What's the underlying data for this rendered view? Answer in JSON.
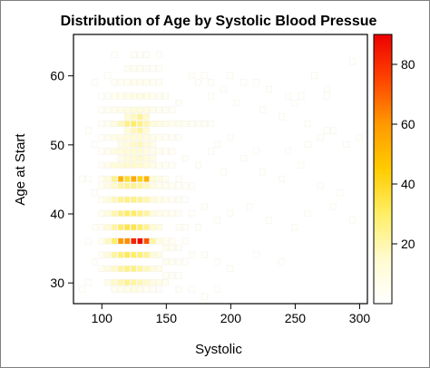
{
  "chart_data": {
    "type": "heatmap",
    "title": "Distribution of Age by Systolic Blood Pressue",
    "xlabel": "Systolic",
    "ylabel": "Age at Start",
    "xlim": [
      78,
      306
    ],
    "ylim": [
      27,
      66
    ],
    "x_ticks": [
      100,
      150,
      200,
      250,
      300
    ],
    "y_ticks": [
      30,
      40,
      50,
      60
    ],
    "colorbar": {
      "min": 0,
      "max": 90,
      "ticks": [
        20,
        40,
        60,
        80
      ],
      "colors": [
        "#ffffff",
        "#fffbd0",
        "#ffee66",
        "#ffcc00",
        "#ff9900",
        "#ff4400",
        "#ee0000"
      ]
    },
    "bin_width_x": 5,
    "bin_height_y": 1,
    "cells": [
      [
        115,
        36,
        60
      ],
      [
        120,
        36,
        62
      ],
      [
        125,
        36,
        82
      ],
      [
        130,
        36,
        88
      ],
      [
        135,
        36,
        72
      ],
      [
        110,
        36,
        30
      ],
      [
        140,
        36,
        22
      ],
      [
        145,
        36,
        10
      ],
      [
        150,
        36,
        6
      ],
      [
        105,
        36,
        18
      ],
      [
        100,
        36,
        6
      ],
      [
        155,
        36,
        4
      ],
      [
        165,
        36,
        2
      ],
      [
        115,
        45,
        52
      ],
      [
        120,
        45,
        38
      ],
      [
        125,
        45,
        55
      ],
      [
        130,
        45,
        42
      ],
      [
        135,
        45,
        52
      ],
      [
        110,
        45,
        24
      ],
      [
        140,
        45,
        14
      ],
      [
        145,
        45,
        8
      ],
      [
        150,
        45,
        4
      ],
      [
        105,
        45,
        12
      ],
      [
        100,
        45,
        5
      ],
      [
        160,
        45,
        2
      ],
      [
        120,
        53,
        26
      ],
      [
        125,
        53,
        30
      ],
      [
        130,
        53,
        26
      ],
      [
        135,
        53,
        20
      ],
      [
        115,
        53,
        18
      ],
      [
        140,
        53,
        12
      ],
      [
        145,
        53,
        10
      ],
      [
        150,
        53,
        8
      ],
      [
        155,
        53,
        6
      ],
      [
        160,
        53,
        6
      ],
      [
        165,
        53,
        4
      ],
      [
        170,
        53,
        4
      ],
      [
        175,
        53,
        3
      ],
      [
        180,
        53,
        3
      ],
      [
        185,
        53,
        2
      ],
      [
        110,
        53,
        10
      ],
      [
        105,
        53,
        5
      ],
      [
        130,
        54,
        24
      ],
      [
        125,
        54,
        18
      ],
      [
        135,
        54,
        16
      ],
      [
        120,
        54,
        14
      ],
      [
        130,
        52,
        22
      ],
      [
        125,
        52,
        18
      ],
      [
        135,
        52,
        14
      ],
      [
        120,
        52,
        12
      ],
      [
        130,
        50,
        18
      ],
      [
        125,
        50,
        16
      ],
      [
        135,
        50,
        12
      ],
      [
        120,
        50,
        12
      ],
      [
        140,
        50,
        8
      ],
      [
        115,
        50,
        8
      ],
      [
        130,
        48,
        16
      ],
      [
        125,
        48,
        14
      ],
      [
        135,
        48,
        12
      ],
      [
        120,
        48,
        12
      ],
      [
        140,
        48,
        8
      ],
      [
        115,
        48,
        8
      ],
      [
        120,
        30,
        24
      ],
      [
        125,
        30,
        22
      ],
      [
        130,
        30,
        20
      ],
      [
        115,
        30,
        20
      ],
      [
        135,
        30,
        16
      ],
      [
        110,
        30,
        16
      ],
      [
        140,
        30,
        10
      ],
      [
        145,
        30,
        8
      ],
      [
        150,
        30,
        5
      ],
      [
        105,
        30,
        8
      ],
      [
        125,
        29,
        10
      ],
      [
        120,
        29,
        8
      ],
      [
        130,
        29,
        8
      ],
      [
        115,
        29,
        6
      ],
      [
        135,
        29,
        5
      ],
      [
        110,
        29,
        5
      ],
      [
        140,
        29,
        3
      ],
      [
        145,
        29,
        2
      ],
      [
        125,
        57,
        10
      ],
      [
        130,
        57,
        10
      ],
      [
        135,
        57,
        8
      ],
      [
        120,
        57,
        8
      ],
      [
        140,
        57,
        6
      ],
      [
        145,
        57,
        4
      ],
      [
        115,
        57,
        5
      ],
      [
        150,
        57,
        4
      ],
      [
        125,
        59,
        6
      ],
      [
        130,
        59,
        6
      ],
      [
        135,
        59,
        5
      ],
      [
        120,
        59,
        5
      ],
      [
        140,
        59,
        4
      ],
      [
        145,
        59,
        3
      ],
      [
        115,
        59,
        3
      ],
      [
        130,
        61,
        4
      ],
      [
        125,
        61,
        4
      ],
      [
        135,
        61,
        3
      ],
      [
        140,
        61,
        2
      ],
      [
        120,
        61,
        3
      ],
      [
        145,
        61,
        2
      ],
      [
        130,
        63,
        2
      ],
      [
        125,
        63,
        2
      ],
      [
        135,
        63,
        2
      ],
      [
        110,
        63,
        1
      ],
      [
        145,
        63,
        1
      ],
      [
        105,
        60,
        1
      ],
      [
        95,
        59,
        1
      ],
      [
        100,
        57,
        1
      ],
      [
        170,
        60,
        2
      ],
      [
        175,
        59,
        1
      ],
      [
        180,
        60,
        1
      ],
      [
        185,
        59,
        1
      ],
      [
        195,
        58,
        1
      ],
      [
        200,
        60,
        1
      ],
      [
        210,
        59,
        1
      ],
      [
        220,
        59,
        1
      ],
      [
        230,
        58,
        1
      ],
      [
        245,
        57,
        1
      ],
      [
        250,
        56,
        1
      ],
      [
        255,
        57,
        1
      ],
      [
        265,
        60,
        1
      ],
      [
        275,
        58,
        1
      ],
      [
        275,
        57,
        1
      ],
      [
        295,
        62,
        1
      ],
      [
        185,
        57,
        1
      ],
      [
        205,
        56,
        1
      ],
      [
        225,
        55,
        1
      ],
      [
        240,
        54,
        1
      ],
      [
        260,
        53,
        1
      ],
      [
        270,
        51,
        1
      ],
      [
        280,
        52,
        1
      ],
      [
        290,
        50,
        1
      ],
      [
        165,
        48,
        2
      ],
      [
        175,
        47,
        2
      ],
      [
        185,
        49,
        1
      ],
      [
        195,
        46,
        1
      ],
      [
        210,
        48,
        1
      ],
      [
        225,
        46,
        1
      ],
      [
        240,
        45,
        1
      ],
      [
        255,
        47,
        1
      ],
      [
        270,
        44,
        1
      ],
      [
        285,
        43,
        1
      ],
      [
        190,
        50,
        2
      ],
      [
        200,
        51,
        1
      ],
      [
        220,
        49,
        1
      ],
      [
        245,
        49,
        1
      ],
      [
        260,
        50,
        1
      ],
      [
        275,
        52,
        1
      ],
      [
        300,
        51,
        1
      ],
      [
        170,
        40,
        2
      ],
      [
        180,
        41,
        2
      ],
      [
        190,
        39,
        1
      ],
      [
        200,
        40,
        1
      ],
      [
        215,
        41,
        1
      ],
      [
        230,
        39,
        1
      ],
      [
        250,
        38,
        1
      ],
      [
        260,
        40,
        1
      ],
      [
        280,
        41,
        1
      ],
      [
        295,
        39,
        1
      ],
      [
        160,
        38,
        3
      ],
      [
        165,
        38,
        2
      ],
      [
        175,
        38,
        2
      ],
      [
        170,
        34,
        2
      ],
      [
        180,
        34,
        2
      ],
      [
        190,
        33,
        1
      ],
      [
        200,
        32,
        1
      ],
      [
        220,
        34,
        1
      ],
      [
        240,
        33,
        1
      ],
      [
        150,
        40,
        6
      ],
      [
        155,
        40,
        5
      ],
      [
        160,
        40,
        3
      ],
      [
        150,
        42,
        6
      ],
      [
        155,
        42,
        4
      ],
      [
        160,
        42,
        3
      ],
      [
        165,
        42,
        2
      ],
      [
        150,
        44,
        6
      ],
      [
        155,
        44,
        4
      ],
      [
        160,
        44,
        3
      ],
      [
        165,
        44,
        2
      ],
      [
        170,
        44,
        2
      ],
      [
        150,
        33,
        6
      ],
      [
        155,
        33,
        4
      ],
      [
        160,
        33,
        3
      ],
      [
        165,
        33,
        2
      ],
      [
        150,
        31,
        5
      ],
      [
        155,
        31,
        3
      ],
      [
        160,
        31,
        2
      ],
      [
        160,
        29,
        2
      ],
      [
        170,
        29,
        1
      ],
      [
        180,
        28,
        1
      ],
      [
        190,
        29,
        1
      ],
      [
        95,
        43,
        2
      ],
      [
        90,
        45,
        1
      ],
      [
        85,
        45,
        1
      ],
      [
        95,
        38,
        2
      ],
      [
        90,
        36,
        1
      ],
      [
        95,
        33,
        2
      ],
      [
        90,
        30,
        1
      ],
      [
        85,
        29,
        1
      ],
      [
        95,
        50,
        1
      ],
      [
        90,
        52,
        1
      ],
      [
        100,
        32,
        4
      ],
      [
        100,
        34,
        5
      ],
      [
        100,
        38,
        5
      ],
      [
        100,
        40,
        5
      ],
      [
        100,
        42,
        5
      ],
      [
        100,
        44,
        4
      ],
      [
        100,
        47,
        3
      ],
      [
        100,
        49,
        3
      ],
      [
        100,
        51,
        2
      ],
      [
        100,
        53,
        2
      ],
      [
        100,
        55,
        2
      ],
      [
        105,
        32,
        10
      ],
      [
        105,
        34,
        14
      ],
      [
        105,
        38,
        14
      ],
      [
        105,
        40,
        12
      ],
      [
        105,
        42,
        12
      ],
      [
        105,
        44,
        10
      ],
      [
        105,
        47,
        8
      ],
      [
        105,
        49,
        6
      ],
      [
        105,
        51,
        5
      ],
      [
        105,
        55,
        4
      ],
      [
        105,
        57,
        3
      ],
      [
        110,
        32,
        16
      ],
      [
        110,
        34,
        22
      ],
      [
        110,
        38,
        22
      ],
      [
        110,
        40,
        20
      ],
      [
        110,
        42,
        18
      ],
      [
        110,
        44,
        16
      ],
      [
        110,
        47,
        12
      ],
      [
        110,
        49,
        10
      ],
      [
        110,
        51,
        8
      ],
      [
        110,
        55,
        6
      ],
      [
        110,
        57,
        5
      ],
      [
        110,
        59,
        3
      ],
      [
        115,
        32,
        22
      ],
      [
        115,
        34,
        28
      ],
      [
        115,
        38,
        30
      ],
      [
        115,
        40,
        26
      ],
      [
        115,
        42,
        24
      ],
      [
        115,
        44,
        22
      ],
      [
        115,
        47,
        14
      ],
      [
        115,
        49,
        12
      ],
      [
        115,
        51,
        10
      ],
      [
        115,
        55,
        8
      ],
      [
        120,
        32,
        26
      ],
      [
        120,
        34,
        32
      ],
      [
        120,
        38,
        34
      ],
      [
        120,
        40,
        30
      ],
      [
        120,
        42,
        26
      ],
      [
        120,
        44,
        24
      ],
      [
        120,
        47,
        16
      ],
      [
        120,
        49,
        14
      ],
      [
        120,
        51,
        12
      ],
      [
        120,
        55,
        10
      ],
      [
        125,
        32,
        26
      ],
      [
        125,
        34,
        30
      ],
      [
        125,
        38,
        34
      ],
      [
        125,
        40,
        30
      ],
      [
        125,
        42,
        26
      ],
      [
        125,
        44,
        24
      ],
      [
        125,
        47,
        16
      ],
      [
        125,
        49,
        14
      ],
      [
        125,
        51,
        14
      ],
      [
        125,
        55,
        12
      ],
      [
        130,
        32,
        22
      ],
      [
        130,
        34,
        28
      ],
      [
        130,
        38,
        30
      ],
      [
        130,
        40,
        26
      ],
      [
        130,
        42,
        24
      ],
      [
        130,
        44,
        22
      ],
      [
        130,
        47,
        16
      ],
      [
        130,
        49,
        14
      ],
      [
        130,
        51,
        14
      ],
      [
        130,
        55,
        12
      ],
      [
        135,
        32,
        18
      ],
      [
        135,
        34,
        24
      ],
      [
        135,
        38,
        24
      ],
      [
        135,
        40,
        22
      ],
      [
        135,
        42,
        20
      ],
      [
        135,
        44,
        18
      ],
      [
        135,
        47,
        12
      ],
      [
        135,
        49,
        10
      ],
      [
        135,
        51,
        10
      ],
      [
        135,
        55,
        10
      ],
      [
        140,
        32,
        12
      ],
      [
        140,
        34,
        14
      ],
      [
        140,
        38,
        14
      ],
      [
        140,
        40,
        12
      ],
      [
        140,
        42,
        12
      ],
      [
        140,
        44,
        10
      ],
      [
        140,
        47,
        8
      ],
      [
        140,
        49,
        7
      ],
      [
        140,
        51,
        7
      ],
      [
        140,
        55,
        6
      ],
      [
        145,
        32,
        8
      ],
      [
        145,
        34,
        10
      ],
      [
        145,
        38,
        10
      ],
      [
        145,
        40,
        8
      ],
      [
        145,
        42,
        8
      ],
      [
        145,
        44,
        6
      ],
      [
        145,
        47,
        5
      ],
      [
        145,
        49,
        5
      ],
      [
        145,
        51,
        5
      ],
      [
        145,
        55,
        4
      ],
      [
        150,
        35,
        6
      ],
      [
        155,
        35,
        4
      ],
      [
        160,
        35,
        3
      ],
      [
        150,
        47,
        4
      ],
      [
        155,
        47,
        3
      ],
      [
        150,
        49,
        4
      ],
      [
        155,
        49,
        3
      ],
      [
        150,
        51,
        4
      ],
      [
        155,
        51,
        3
      ],
      [
        160,
        51,
        2
      ],
      [
        150,
        55,
        3
      ],
      [
        155,
        55,
        2
      ],
      [
        160,
        56,
        2
      ]
    ]
  }
}
